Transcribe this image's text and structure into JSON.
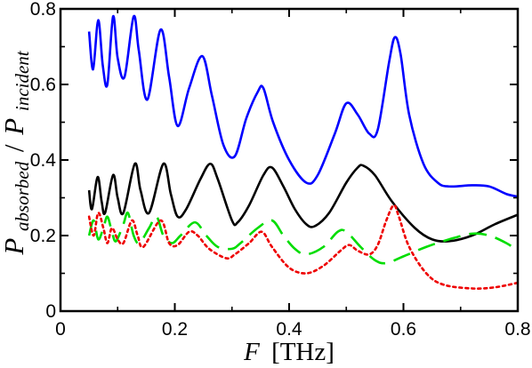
{
  "chart_data": {
    "type": "line",
    "xlabel": {
      "var": "F",
      "unit": "[THz]"
    },
    "ylabel": {
      "left_base": "P",
      "left_sub": "absorbed",
      "separator": "/",
      "right_base": "P",
      "right_sub": "incident"
    },
    "xlim": [
      0,
      0.8
    ],
    "ylim": [
      0,
      0.8
    ],
    "xticks": [
      "0",
      "0.2",
      "0.4",
      "0.6",
      "0.8"
    ],
    "yticks": [
      "0",
      "0.2",
      "0.4",
      "0.6",
      "0.8"
    ],
    "grid": false,
    "legend": "none",
    "series": [
      {
        "color": "#0000ff",
        "dash": "solid",
        "points": [
          [
            0.05,
            0.74
          ],
          [
            0.057,
            0.64
          ],
          [
            0.066,
            0.77
          ],
          [
            0.074,
            0.65
          ],
          [
            0.082,
            0.6
          ],
          [
            0.092,
            0.78
          ],
          [
            0.1,
            0.67
          ],
          [
            0.112,
            0.62
          ],
          [
            0.128,
            0.78
          ],
          [
            0.137,
            0.69
          ],
          [
            0.152,
            0.56
          ],
          [
            0.175,
            0.745
          ],
          [
            0.19,
            0.62
          ],
          [
            0.205,
            0.49
          ],
          [
            0.225,
            0.59
          ],
          [
            0.248,
            0.675
          ],
          [
            0.265,
            0.57
          ],
          [
            0.285,
            0.44
          ],
          [
            0.305,
            0.41
          ],
          [
            0.325,
            0.51
          ],
          [
            0.345,
            0.58
          ],
          [
            0.355,
            0.59
          ],
          [
            0.372,
            0.5
          ],
          [
            0.4,
            0.4
          ],
          [
            0.43,
            0.34
          ],
          [
            0.45,
            0.36
          ],
          [
            0.48,
            0.47
          ],
          [
            0.5,
            0.55
          ],
          [
            0.52,
            0.52
          ],
          [
            0.54,
            0.47
          ],
          [
            0.555,
            0.48
          ],
          [
            0.575,
            0.66
          ],
          [
            0.585,
            0.725
          ],
          [
            0.595,
            0.68
          ],
          [
            0.61,
            0.52
          ],
          [
            0.635,
            0.39
          ],
          [
            0.66,
            0.34
          ],
          [
            0.68,
            0.33
          ],
          [
            0.72,
            0.333
          ],
          [
            0.75,
            0.33
          ],
          [
            0.78,
            0.31
          ],
          [
            0.8,
            0.303
          ]
        ]
      },
      {
        "color": "#000000",
        "dash": "solid",
        "points": [
          [
            0.05,
            0.32
          ],
          [
            0.055,
            0.27
          ],
          [
            0.065,
            0.355
          ],
          [
            0.072,
            0.29
          ],
          [
            0.078,
            0.26
          ],
          [
            0.092,
            0.36
          ],
          [
            0.1,
            0.3
          ],
          [
            0.11,
            0.26
          ],
          [
            0.13,
            0.39
          ],
          [
            0.14,
            0.32
          ],
          [
            0.155,
            0.26
          ],
          [
            0.18,
            0.39
          ],
          [
            0.193,
            0.31
          ],
          [
            0.205,
            0.25
          ],
          [
            0.22,
            0.27
          ],
          [
            0.245,
            0.35
          ],
          [
            0.262,
            0.39
          ],
          [
            0.275,
            0.35
          ],
          [
            0.3,
            0.24
          ],
          [
            0.31,
            0.235
          ],
          [
            0.33,
            0.28
          ],
          [
            0.355,
            0.36
          ],
          [
            0.37,
            0.38
          ],
          [
            0.39,
            0.33
          ],
          [
            0.41,
            0.27
          ],
          [
            0.43,
            0.23
          ],
          [
            0.445,
            0.225
          ],
          [
            0.47,
            0.26
          ],
          [
            0.5,
            0.34
          ],
          [
            0.52,
            0.38
          ],
          [
            0.53,
            0.385
          ],
          [
            0.55,
            0.36
          ],
          [
            0.58,
            0.29
          ],
          [
            0.62,
            0.22
          ],
          [
            0.65,
            0.19
          ],
          [
            0.68,
            0.185
          ],
          [
            0.72,
            0.2
          ],
          [
            0.76,
            0.23
          ],
          [
            0.8,
            0.255
          ]
        ]
      },
      {
        "color": "#00dd00",
        "dash": "dashed",
        "points": [
          [
            0.05,
            0.2
          ],
          [
            0.058,
            0.24
          ],
          [
            0.066,
            0.19
          ],
          [
            0.075,
            0.22
          ],
          [
            0.082,
            0.25
          ],
          [
            0.09,
            0.21
          ],
          [
            0.097,
            0.185
          ],
          [
            0.11,
            0.23
          ],
          [
            0.118,
            0.26
          ],
          [
            0.128,
            0.2
          ],
          [
            0.138,
            0.18
          ],
          [
            0.155,
            0.22
          ],
          [
            0.168,
            0.25
          ],
          [
            0.18,
            0.2
          ],
          [
            0.195,
            0.18
          ],
          [
            0.21,
            0.2
          ],
          [
            0.235,
            0.235
          ],
          [
            0.255,
            0.2
          ],
          [
            0.275,
            0.17
          ],
          [
            0.3,
            0.165
          ],
          [
            0.315,
            0.18
          ],
          [
            0.345,
            0.22
          ],
          [
            0.37,
            0.24
          ],
          [
            0.39,
            0.2
          ],
          [
            0.41,
            0.165
          ],
          [
            0.43,
            0.15
          ],
          [
            0.46,
            0.17
          ],
          [
            0.485,
            0.21
          ],
          [
            0.5,
            0.21
          ],
          [
            0.525,
            0.17
          ],
          [
            0.55,
            0.135
          ],
          [
            0.57,
            0.127
          ],
          [
            0.6,
            0.145
          ],
          [
            0.64,
            0.17
          ],
          [
            0.68,
            0.19
          ],
          [
            0.72,
            0.205
          ],
          [
            0.75,
            0.2
          ],
          [
            0.78,
            0.18
          ],
          [
            0.8,
            0.16
          ]
        ]
      },
      {
        "color": "#ee0000",
        "dash": "dotted",
        "points": [
          [
            0.05,
            0.25
          ],
          [
            0.058,
            0.2
          ],
          [
            0.066,
            0.26
          ],
          [
            0.075,
            0.22
          ],
          [
            0.082,
            0.18
          ],
          [
            0.09,
            0.22
          ],
          [
            0.1,
            0.19
          ],
          [
            0.11,
            0.18
          ],
          [
            0.125,
            0.24
          ],
          [
            0.135,
            0.2
          ],
          [
            0.145,
            0.17
          ],
          [
            0.175,
            0.24
          ],
          [
            0.19,
            0.18
          ],
          [
            0.205,
            0.175
          ],
          [
            0.225,
            0.21
          ],
          [
            0.24,
            0.2
          ],
          [
            0.26,
            0.165
          ],
          [
            0.29,
            0.14
          ],
          [
            0.305,
            0.15
          ],
          [
            0.33,
            0.18
          ],
          [
            0.352,
            0.21
          ],
          [
            0.37,
            0.17
          ],
          [
            0.4,
            0.115
          ],
          [
            0.43,
            0.1
          ],
          [
            0.46,
            0.12
          ],
          [
            0.49,
            0.16
          ],
          [
            0.505,
            0.175
          ],
          [
            0.52,
            0.16
          ],
          [
            0.54,
            0.15
          ],
          [
            0.555,
            0.175
          ],
          [
            0.57,
            0.24
          ],
          [
            0.583,
            0.28
          ],
          [
            0.592,
            0.25
          ],
          [
            0.61,
            0.17
          ],
          [
            0.64,
            0.1
          ],
          [
            0.67,
            0.07
          ],
          [
            0.72,
            0.06
          ],
          [
            0.76,
            0.063
          ],
          [
            0.8,
            0.075
          ]
        ]
      }
    ]
  }
}
